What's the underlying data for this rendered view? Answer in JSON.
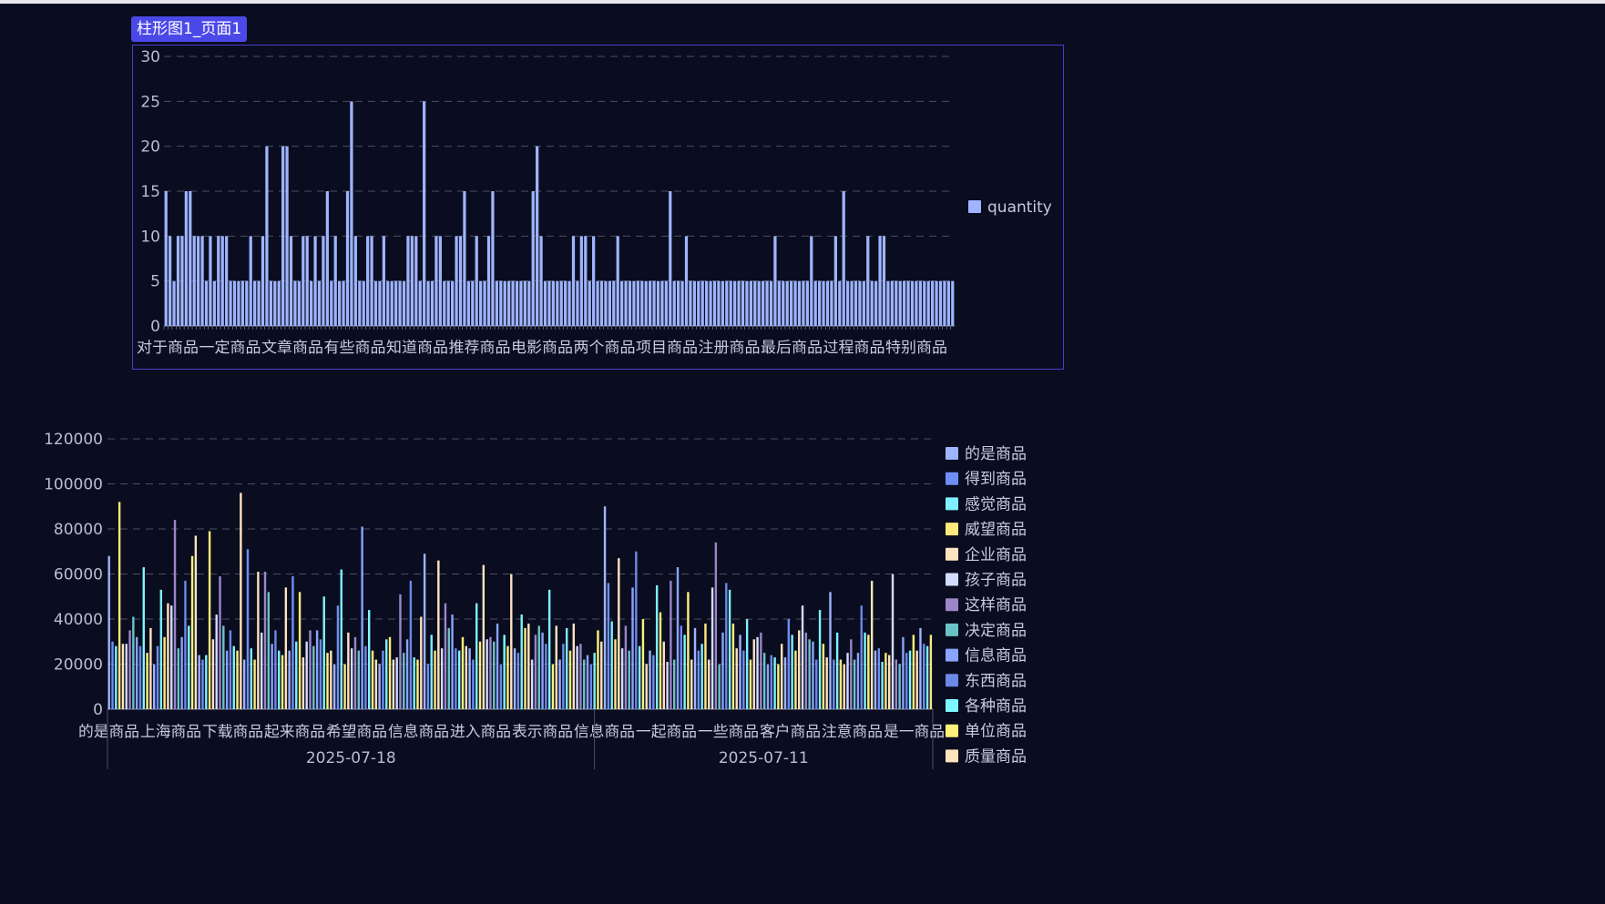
{
  "tab_label": "柱形图1_页面1",
  "colors": {
    "bg": "#0a0d1f",
    "tab": "#4b48e8",
    "border": "#4540c9",
    "axis": "#8a8fa8",
    "grid": "#4a4e62"
  },
  "chart_data": [
    {
      "type": "bar",
      "ylim": [
        0,
        30
      ],
      "yticks": [
        0,
        5,
        10,
        15,
        20,
        25,
        30
      ],
      "category_labels": [
        "对于商品",
        "一定商品",
        "文章商品",
        "有些商品",
        "知道商品",
        "推荐商品",
        "电影商品",
        "两个商品",
        "项目商品",
        "注册商品",
        "最后商品",
        "过程商品",
        "特别商品"
      ],
      "series": [
        {
          "name": "quantity",
          "color": "#9fb4ff",
          "values": [
            15,
            10,
            5,
            10,
            10,
            15,
            15,
            10,
            10,
            10,
            5,
            10,
            5,
            10,
            10,
            10,
            5,
            5,
            5,
            5,
            5,
            10,
            5,
            5,
            10,
            20,
            5,
            5,
            5,
            20,
            20,
            10,
            5,
            5,
            10,
            10,
            5,
            10,
            5,
            10,
            15,
            5,
            10,
            5,
            5,
            15,
            25,
            10,
            5,
            5,
            10,
            10,
            5,
            5,
            10,
            5,
            5,
            5,
            5,
            5,
            10,
            10,
            10,
            5,
            25,
            5,
            5,
            10,
            10,
            5,
            5,
            5,
            10,
            10,
            15,
            5,
            5,
            10,
            5,
            5,
            10,
            15,
            5,
            5,
            5,
            5,
            5,
            5,
            5,
            5,
            5,
            15,
            20,
            10,
            5,
            5,
            5,
            5,
            5,
            5,
            5,
            10,
            5,
            10,
            10,
            5,
            10,
            5,
            5,
            5,
            5,
            5,
            10,
            5,
            5,
            5,
            5,
            5,
            5,
            5,
            5,
            5,
            5,
            5,
            5,
            15,
            5,
            5,
            5,
            10,
            5,
            5,
            5,
            5,
            5,
            5,
            5,
            5,
            5,
            5,
            5,
            5,
            5,
            5,
            5,
            5,
            5,
            5,
            5,
            5,
            5,
            10,
            5,
            5,
            5,
            5,
            5,
            5,
            5,
            5,
            10,
            5,
            5,
            5,
            5,
            5,
            10,
            5,
            15,
            5,
            5,
            5,
            5,
            5,
            10,
            5,
            5,
            10,
            10,
            5,
            5,
            5,
            5,
            5,
            5,
            5,
            5,
            5,
            5,
            5,
            5,
            5,
            5,
            5,
            5,
            5
          ]
        }
      ]
    },
    {
      "type": "bar",
      "ylim": [
        0,
        120000
      ],
      "yticks": [
        0,
        20000,
        40000,
        60000,
        80000,
        100000,
        120000
      ],
      "category_labels": [
        "的是商品",
        "上海商品",
        "下载商品",
        "起来商品",
        "希望商品",
        "信息商品",
        "进入商品",
        "表示商品",
        "信息商品",
        "一起商品",
        "一些商品",
        "客户商品",
        "注意商品",
        "是一商品"
      ],
      "group_labels": [
        "2025-07-18",
        "2025-07-11"
      ],
      "group_split": 0.59,
      "series_names": [
        "的是商品",
        "得到商品",
        "感觉商品",
        "威望商品",
        "企业商品",
        "孩子商品",
        "这样商品",
        "决定商品",
        "信息商品",
        "东西商品",
        "各种商品",
        "单位商品",
        "质量商品"
      ],
      "series_colors": [
        "#9fb4ff",
        "#6f8ff5",
        "#7ef0ff",
        "#ffe97a",
        "#ffe3c0",
        "#d3dcff",
        "#9b86c9",
        "#6bc3c8",
        "#8aa4ff",
        "#6e88e8",
        "#7ef6ff",
        "#fff27a",
        "#ffe3bd"
      ],
      "values": [
        68000,
        30000,
        28000,
        92000,
        29000,
        29000,
        35000,
        41000,
        32000,
        28000,
        63000,
        25000,
        36000,
        20000,
        28000,
        53000,
        32000,
        47000,
        46000,
        84000,
        27000,
        32000,
        57000,
        37000,
        68000,
        77000,
        24000,
        22000,
        24000,
        79000,
        31000,
        42000,
        59000,
        37000,
        26000,
        35000,
        28000,
        26000,
        96000,
        22000,
        71000,
        27000,
        22000,
        61000,
        34000,
        61000,
        52000,
        29000,
        35000,
        26000,
        24000,
        54000,
        26000,
        59000,
        30000,
        52000,
        23000,
        30000,
        35000,
        28000,
        35000,
        31000,
        50000,
        25000,
        26000,
        20000,
        46000,
        62000,
        20000,
        34000,
        27000,
        32000,
        26000,
        81000,
        28000,
        44000,
        26000,
        22000,
        20000,
        26000,
        31000,
        32000,
        22000,
        23000,
        51000,
        25000,
        31000,
        57000,
        23000,
        22000,
        41000,
        69000,
        20000,
        33000,
        26000,
        66000,
        27000,
        47000,
        36000,
        42000,
        27000,
        26000,
        32000,
        28000,
        27000,
        22000,
        47000,
        30000,
        64000,
        31000,
        32000,
        30000,
        38000,
        20000,
        33000,
        28000,
        60000,
        27000,
        25000,
        42000,
        36000,
        38000,
        22000,
        33000,
        37000,
        34000,
        29000,
        53000,
        20000,
        37000,
        22000,
        29000,
        36000,
        26000,
        38000,
        28000,
        29000,
        22000,
        24000,
        20000,
        25000,
        35000,
        30000,
        90000,
        56000,
        39000,
        31000,
        67000,
        27000,
        37000,
        26000,
        54000,
        70000,
        28000,
        40000,
        20000,
        26000,
        24000,
        55000,
        43000,
        30000,
        21000,
        57000,
        22000,
        63000,
        37000,
        33000,
        52000,
        22000,
        36000,
        26000,
        29000,
        38000,
        22000,
        54000,
        74000,
        20000,
        34000,
        56000,
        53000,
        38000,
        27000,
        33000,
        26000,
        40000,
        22000,
        31000,
        32000,
        34000,
        25000,
        20000,
        24000,
        23000,
        20000,
        29000,
        23000,
        40000,
        33000,
        26000,
        35000,
        46000,
        34000,
        31000,
        30000,
        22000,
        44000,
        29000,
        23000,
        52000,
        22000,
        34000,
        22000,
        20000,
        25000,
        31000,
        22000,
        25000,
        46000,
        34000,
        33000,
        57000,
        26000,
        27000,
        21000,
        25000,
        24000,
        60000,
        22000,
        20000,
        32000,
        25000,
        26000,
        33000,
        26000,
        36000,
        29000,
        28000,
        33000
      ]
    }
  ]
}
